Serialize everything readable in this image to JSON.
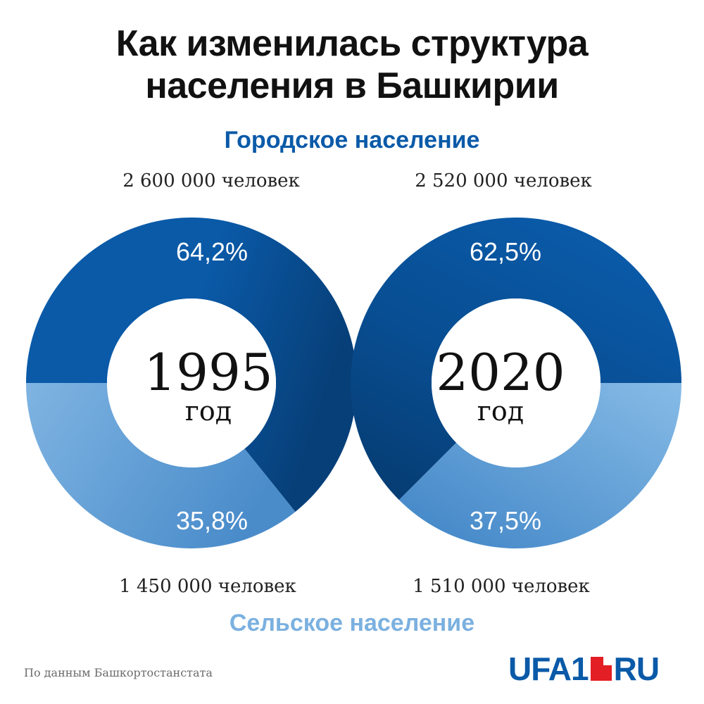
{
  "title": {
    "line1": "Как изменилась структура",
    "line2": "населения в Башкирии"
  },
  "legend": {
    "urban": "Городское население",
    "rural": "Сельское население"
  },
  "colors": {
    "urban": "#0a5aa8",
    "urban_dark": "#063a6e",
    "rural": "#7bb1e0",
    "rural_mid": "#5596cf",
    "urban_label": "#0a5aa8",
    "rural_label": "#7bb1e0"
  },
  "chart_data": {
    "type": "pie",
    "variant": "donut",
    "title": "Как изменилась структура населения в Башкирии",
    "categories": [
      "Городское население",
      "Сельское население"
    ],
    "charts": [
      {
        "year": "1995",
        "year_label": "год",
        "urban": {
          "percent": 64.2,
          "percent_label": "64,2%",
          "count": 2600000,
          "count_label": "2 600 000 человек"
        },
        "rural": {
          "percent": 35.8,
          "percent_label": "35,8%",
          "count": 1450000,
          "count_label": "1 450 000 человек"
        }
      },
      {
        "year": "2020",
        "year_label": "год",
        "urban": {
          "percent": 62.5,
          "percent_label": "62,5%",
          "count": 2520000,
          "count_label": "2 520 000 человек"
        },
        "rural": {
          "percent": 37.5,
          "percent_label": "37,5%",
          "count": 1510000,
          "count_label": "1 510 000 человек"
        }
      }
    ]
  },
  "source": "По данным Башкортостанстата",
  "logo": {
    "left": "UFA1",
    "right": "RU"
  }
}
